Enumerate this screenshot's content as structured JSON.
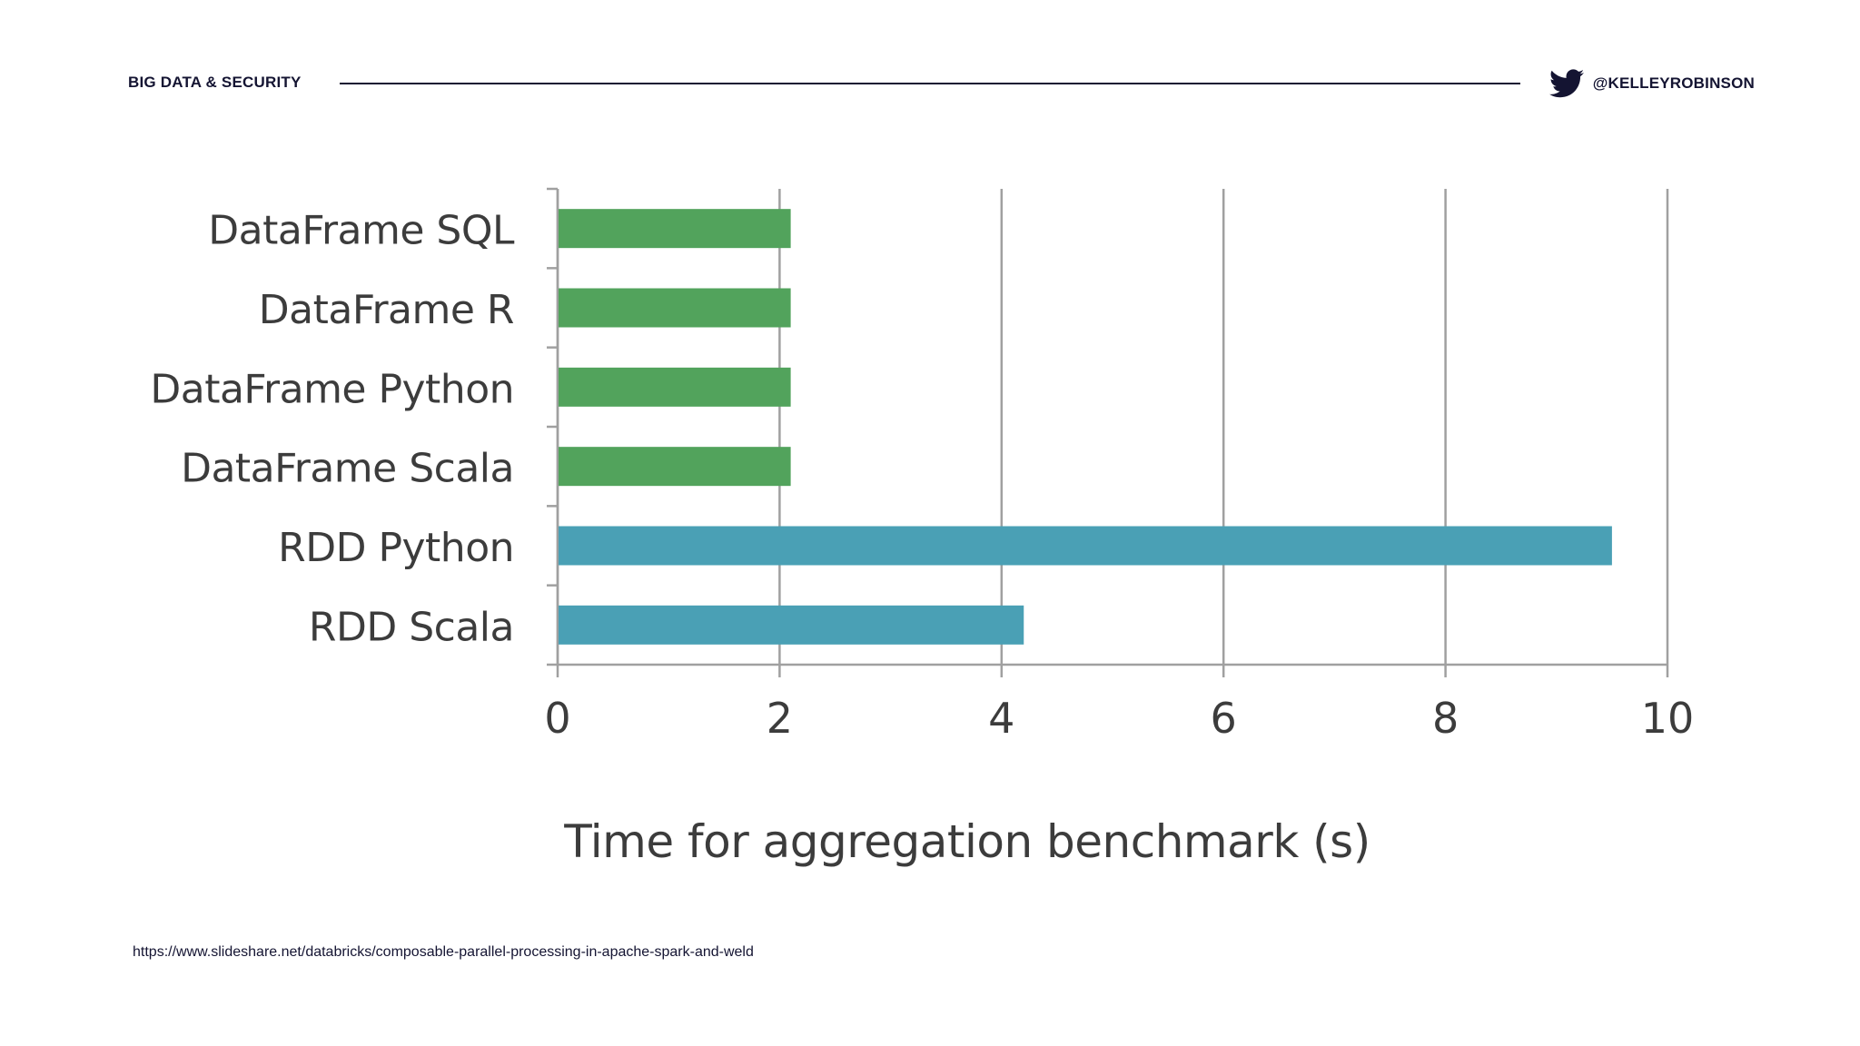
{
  "header": {
    "section_label": "BIG DATA & SECURITY",
    "twitter_handle": "@KELLEYROBINSON"
  },
  "footer": {
    "source_url": "https://www.slideshare.net/databricks/composable-parallel-processing-in-apache-spark-and-weld"
  },
  "icons": {
    "social": "twitter-bird-icon"
  },
  "colors": {
    "header_text": "#141432",
    "dataframe_bar": "#52a35c",
    "rdd_bar": "#4aa0b5",
    "axis": "#a0a0a0",
    "label_text": "#3c3c3c"
  },
  "chart_data": {
    "type": "bar",
    "orientation": "horizontal",
    "categories": [
      "DataFrame SQL",
      "DataFrame R",
      "DataFrame Python",
      "DataFrame Scala",
      "RDD Python",
      "RDD Scala"
    ],
    "values": [
      2.1,
      2.1,
      2.1,
      2.1,
      9.5,
      4.2
    ],
    "bar_colors": [
      "#52a35c",
      "#52a35c",
      "#52a35c",
      "#52a35c",
      "#4aa0b5",
      "#4aa0b5"
    ],
    "xlabel": "Time for aggregation benchmark (s)",
    "ylabel": "",
    "xlim": [
      0,
      10
    ],
    "xticks": [
      "0",
      "2",
      "4",
      "6",
      "8",
      "10"
    ],
    "grid": "vertical",
    "legend": "none"
  }
}
